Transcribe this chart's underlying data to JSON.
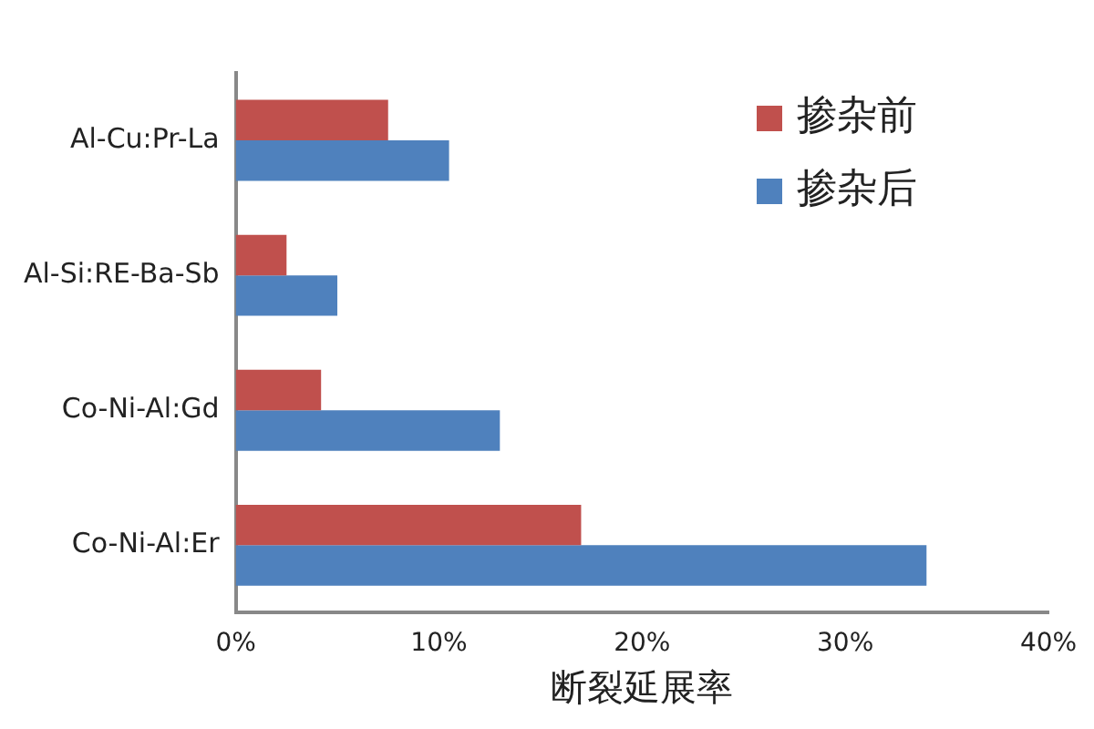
{
  "chart_data": {
    "type": "bar",
    "orientation": "horizontal",
    "xlabel": "断裂延展率",
    "categories": [
      "Al-Cu:Pr-La",
      "Al-Si:RE-Ba-Sb",
      "Co-Ni-Al:Gd",
      "Co-Ni-Al:Er"
    ],
    "series": [
      {
        "name": "掺杂前",
        "color": "#c0504d",
        "values": [
          7.5,
          2.5,
          4.2,
          17
        ]
      },
      {
        "name": "掺杂后",
        "color": "#4f81bd",
        "values": [
          10.5,
          5.0,
          13.0,
          34
        ]
      }
    ],
    "xlim": [
      0,
      40
    ],
    "xticks": [
      {
        "value": 0,
        "label": "0%"
      },
      {
        "value": 10,
        "label": "10%"
      },
      {
        "value": 20,
        "label": "20%"
      },
      {
        "value": 30,
        "label": "30%"
      },
      {
        "value": 40,
        "label": "40%"
      }
    ],
    "grid": false,
    "legend": "top right"
  }
}
